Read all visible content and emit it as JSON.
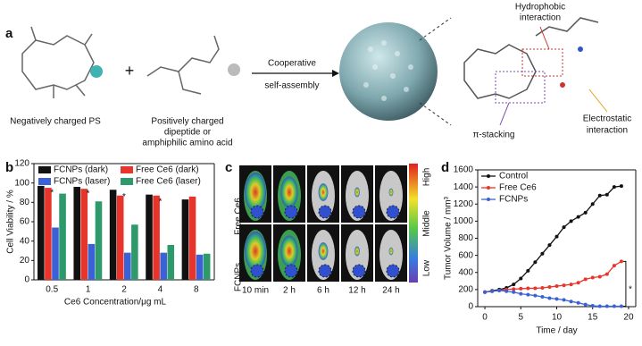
{
  "panels": {
    "a": {
      "label": "a",
      "ps": "Negatively charged PS",
      "plus": "+",
      "peptide": [
        "Positively charged",
        "dipeptide or",
        "amphiphilic amino acid"
      ],
      "arrow": [
        "Cooperative",
        "self-assembly"
      ],
      "hydrophobic": [
        "Hydrophobic",
        "interaction"
      ],
      "electrostatic": [
        "Electrostatic",
        "interaction"
      ],
      "stacking": "π-stacking"
    },
    "b": {
      "label": "b"
    },
    "c": {
      "label": "c",
      "rows": [
        "Free Ce6",
        "FCNPs"
      ],
      "scale": [
        "High",
        "Middle",
        "Low"
      ],
      "times": [
        "10 min",
        "2 h",
        "6 h",
        "12 h",
        "24 h"
      ]
    },
    "d": {
      "label": "d"
    }
  },
  "chart_data": [
    {
      "type": "bar",
      "categories": [
        "0.5",
        "1",
        "2",
        "4",
        "8"
      ],
      "x_label": "Ce6  Concentration/μg mL",
      "y_label": "Cell Viability / %",
      "ylim": [
        0,
        120
      ],
      "yticks": [
        0,
        20,
        40,
        60,
        80,
        100,
        120
      ],
      "series": [
        {
          "name": "FCNPs (dark)",
          "color": "#111111",
          "values": [
            97,
            96,
            93,
            88,
            83
          ]
        },
        {
          "name": "Free Ce6 (dark)",
          "color": "#e8352c",
          "values": [
            95,
            94,
            87,
            87,
            86
          ]
        },
        {
          "name": "FCNPs (laser)",
          "color": "#3a62d6",
          "values": [
            54,
            37,
            28,
            28,
            26
          ]
        },
        {
          "name": "Free Ce6 (laser)",
          "color": "#2e9a6b",
          "values": [
            89,
            81,
            57,
            36,
            27
          ]
        }
      ],
      "annotations": [
        "*",
        "*",
        "*",
        "*"
      ]
    },
    {
      "type": "line",
      "x": [
        0,
        1,
        2,
        3,
        4,
        5,
        6,
        7,
        8,
        9,
        10,
        11,
        12,
        13,
        14,
        15,
        16,
        17,
        18,
        19
      ],
      "x_label": "Time / day",
      "y_label": "Tumor Volume / mm³",
      "xlim": [
        -1,
        21
      ],
      "xticks": [
        0,
        5,
        10,
        15,
        20
      ],
      "ylim": [
        0,
        1600
      ],
      "yticks": [
        0,
        200,
        400,
        600,
        800,
        1000,
        1200,
        1400,
        1600
      ],
      "series": [
        {
          "name": "Control",
          "color": "#111111",
          "values": [
            170,
            185,
            200,
            220,
            260,
            330,
            420,
            520,
            620,
            720,
            820,
            930,
            1000,
            1050,
            1100,
            1200,
            1300,
            1310,
            1400,
            1410
          ]
        },
        {
          "name": "Free Ce6",
          "color": "#e8352c",
          "values": [
            170,
            180,
            190,
            200,
            205,
            210,
            215,
            215,
            220,
            230,
            240,
            250,
            260,
            280,
            320,
            340,
            350,
            380,
            480,
            530
          ]
        },
        {
          "name": "FCNPs",
          "color": "#3a62d6",
          "values": [
            170,
            180,
            190,
            180,
            170,
            150,
            140,
            130,
            115,
            100,
            90,
            80,
            60,
            45,
            25,
            10,
            5,
            5,
            5,
            5
          ]
        }
      ],
      "annotations": [
        "*"
      ]
    }
  ]
}
